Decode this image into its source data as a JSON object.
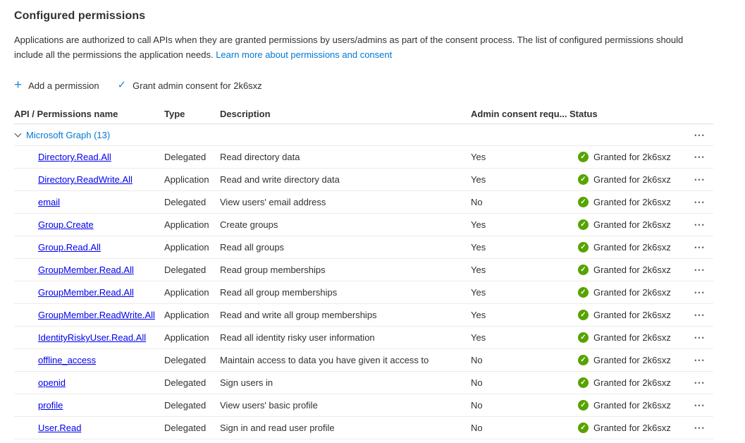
{
  "page": {
    "title": "Configured permissions",
    "description": "Applications are authorized to call APIs when they are granted permissions by users/admins as part of the consent process. The list of configured permissions should include all the permissions the application needs.",
    "learn_more_link": "Learn more about permissions and consent"
  },
  "toolbar": {
    "add_permission_label": "Add a permission",
    "grant_admin_consent_label": "Grant admin consent for 2k6sxz"
  },
  "icons": {
    "plus": "+",
    "check": "✓",
    "granted_check": "✓",
    "more": "•••"
  },
  "colors": {
    "accent": "#0078d4",
    "success_green": "#57a300",
    "text": "#323130",
    "divider": "#edebe9"
  },
  "table": {
    "columns": [
      "API / Permissions name",
      "Type",
      "Description",
      "Admin consent requ...",
      "Status"
    ],
    "group": {
      "name": "Microsoft Graph (13)"
    },
    "rows": [
      {
        "name": "Directory.Read.All",
        "type": "Delegated",
        "description": "Read directory data",
        "admin_consent": "Yes",
        "status": "Granted for 2k6sxz"
      },
      {
        "name": "Directory.ReadWrite.All",
        "type": "Application",
        "description": "Read and write directory data",
        "admin_consent": "Yes",
        "status": "Granted for 2k6sxz"
      },
      {
        "name": "email",
        "type": "Delegated",
        "description": "View users' email address",
        "admin_consent": "No",
        "status": "Granted for 2k6sxz"
      },
      {
        "name": "Group.Create",
        "type": "Application",
        "description": "Create groups",
        "admin_consent": "Yes",
        "status": "Granted for 2k6sxz"
      },
      {
        "name": "Group.Read.All",
        "type": "Application",
        "description": "Read all groups",
        "admin_consent": "Yes",
        "status": "Granted for 2k6sxz"
      },
      {
        "name": "GroupMember.Read.All",
        "type": "Delegated",
        "description": "Read group memberships",
        "admin_consent": "Yes",
        "status": "Granted for 2k6sxz"
      },
      {
        "name": "GroupMember.Read.All",
        "type": "Application",
        "description": "Read all group memberships",
        "admin_consent": "Yes",
        "status": "Granted for 2k6sxz"
      },
      {
        "name": "GroupMember.ReadWrite.All",
        "type": "Application",
        "description": "Read and write all group memberships",
        "admin_consent": "Yes",
        "status": "Granted for 2k6sxz"
      },
      {
        "name": "IdentityRiskyUser.Read.All",
        "type": "Application",
        "description": "Read all identity risky user information",
        "admin_consent": "Yes",
        "status": "Granted for 2k6sxz"
      },
      {
        "name": "offline_access",
        "type": "Delegated",
        "description": "Maintain access to data you have given it access to",
        "admin_consent": "No",
        "status": "Granted for 2k6sxz"
      },
      {
        "name": "openid",
        "type": "Delegated",
        "description": "Sign users in",
        "admin_consent": "No",
        "status": "Granted for 2k6sxz"
      },
      {
        "name": "profile",
        "type": "Delegated",
        "description": "View users' basic profile",
        "admin_consent": "No",
        "status": "Granted for 2k6sxz"
      },
      {
        "name": "User.Read",
        "type": "Delegated",
        "description": "Sign in and read user profile",
        "admin_consent": "No",
        "status": "Granted for 2k6sxz"
      }
    ]
  }
}
